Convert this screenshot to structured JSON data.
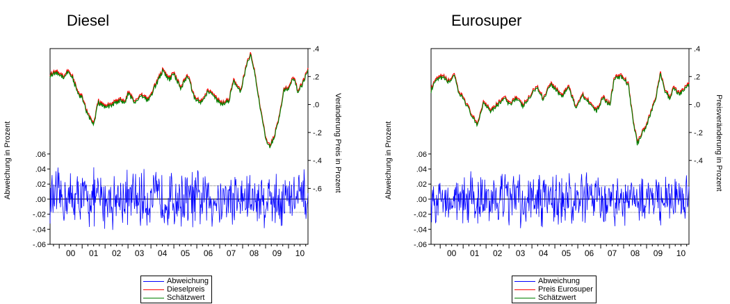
{
  "chart_data": [
    {
      "type": "line",
      "title": "Diesel",
      "ylabel": "Abweichung in Prozent",
      "y2label": "Veränderung Preis in Prozent",
      "x_ticks": [
        "00",
        "01",
        "02",
        "03",
        "04",
        "05",
        "06",
        "07",
        "08",
        "09",
        "10"
      ],
      "x_range": [
        1999.6,
        2010.85
      ],
      "left_ticks": [
        ".06",
        ".04",
        ".02",
        ".00",
        "-.02",
        "-.04",
        "-.06"
      ],
      "left_tick_values": [
        0.06,
        0.04,
        0.02,
        0.0,
        -0.02,
        -0.04,
        -0.06
      ],
      "ylim_left": [
        -0.06,
        0.2
      ],
      "right_ticks": [
        ".4",
        ".2",
        ".0",
        "-.2",
        "-.4",
        "-.6"
      ],
      "right_tick_values": [
        0.4,
        0.2,
        0.0,
        -0.2,
        -0.4,
        -0.6
      ],
      "ylim_right": [
        -1.0,
        0.4
      ],
      "reference_lines_left": [
        0.0176,
        -0.0176
      ],
      "colors": {
        "abweichung": "#0000ff",
        "preis": "#ff0000",
        "schaetzwert": "#008000"
      },
      "price_keypoints": {
        "x": [
          1999.6,
          1999.9,
          2000.2,
          2000.4,
          2000.6,
          2000.8,
          2001.0,
          2001.2,
          2001.5,
          2001.7,
          2002.0,
          2002.3,
          2002.6,
          2002.9,
          2003.0,
          2003.3,
          2003.6,
          2003.9,
          2004.2,
          2004.5,
          2004.8,
          2005.0,
          2005.3,
          2005.6,
          2005.9,
          2006.2,
          2006.5,
          2006.8,
          2007.1,
          2007.4,
          2007.6,
          2007.9,
          2008.2,
          2008.35,
          2008.5,
          2008.75,
          2009.0,
          2009.2,
          2009.4,
          2009.6,
          2009.8,
          2010.0,
          2010.2,
          2010.4,
          2010.6,
          2010.85
        ],
        "y": [
          0.21,
          0.23,
          0.2,
          0.24,
          0.19,
          0.08,
          0.05,
          -0.05,
          -0.15,
          0.02,
          -0.02,
          0.0,
          0.03,
          0.02,
          0.08,
          0.02,
          0.07,
          0.03,
          0.14,
          0.24,
          0.18,
          0.22,
          0.12,
          0.21,
          0.05,
          0.02,
          0.1,
          0.05,
          0.0,
          0.03,
          0.17,
          0.09,
          0.3,
          0.36,
          0.25,
          0.0,
          -0.24,
          -0.3,
          -0.22,
          -0.08,
          0.1,
          0.12,
          0.2,
          0.1,
          0.14,
          0.25
        ]
      },
      "deviation_envelope": 0.045,
      "legend": [
        "Abweichung",
        "Dieselpreis",
        "Schätzwert"
      ]
    },
    {
      "type": "line",
      "title": "Eurosuper",
      "ylabel": "Abweichung in Prozent",
      "y2label": "Preisveränderung in Prozent",
      "x_ticks": [
        "00",
        "01",
        "02",
        "03",
        "04",
        "05",
        "06",
        "07",
        "08",
        "09",
        "10"
      ],
      "x_range": [
        1999.6,
        2010.85
      ],
      "left_ticks": [
        ".06",
        ".04",
        ".02",
        ".00",
        "-.02",
        "-.04",
        "-.06"
      ],
      "left_tick_values": [
        0.06,
        0.04,
        0.02,
        0.0,
        -0.02,
        -0.04,
        -0.06
      ],
      "ylim_left": [
        -0.06,
        0.2
      ],
      "right_ticks": [
        ".4",
        ".2",
        ".0",
        "-.2",
        "-.4"
      ],
      "right_tick_values": [
        0.4,
        0.2,
        0.0,
        -0.2,
        -0.4
      ],
      "ylim_right": [
        -1.0,
        0.4
      ],
      "reference_lines_left": [
        0.0176,
        -0.0176
      ],
      "colors": {
        "abweichung": "#0000ff",
        "preis": "#ff0000",
        "schaetzwert": "#008000"
      },
      "price_keypoints": {
        "x": [
          1999.6,
          1999.8,
          2000.1,
          2000.4,
          2000.6,
          2000.8,
          2001.0,
          2001.3,
          2001.6,
          2001.9,
          2002.2,
          2002.5,
          2002.8,
          2003.0,
          2003.3,
          2003.6,
          2003.9,
          2004.2,
          2004.5,
          2004.8,
          2005.0,
          2005.3,
          2005.6,
          2005.9,
          2006.2,
          2006.5,
          2006.8,
          2007.1,
          2007.4,
          2007.6,
          2007.9,
          2008.2,
          2008.4,
          2008.6,
          2008.8,
          2009.0,
          2009.2,
          2009.4,
          2009.6,
          2009.8,
          2010.0,
          2010.2,
          2010.4,
          2010.6,
          2010.85
        ],
        "y": [
          0.1,
          0.17,
          0.2,
          0.16,
          0.22,
          0.08,
          0.05,
          -0.05,
          -0.15,
          0.02,
          -0.04,
          0.0,
          0.05,
          0.0,
          0.05,
          -0.01,
          0.05,
          0.13,
          0.04,
          0.15,
          0.12,
          0.06,
          0.13,
          -0.02,
          0.07,
          0.02,
          -0.05,
          0.05,
          0.0,
          0.19,
          0.2,
          0.15,
          -0.1,
          -0.28,
          -0.2,
          -0.15,
          -0.05,
          0.05,
          0.22,
          0.1,
          0.05,
          0.12,
          0.08,
          0.1,
          0.15
        ]
      },
      "deviation_envelope": 0.04,
      "legend": [
        "Abweichung",
        "Preis Eurosuper",
        "Schätzwert"
      ]
    }
  ]
}
